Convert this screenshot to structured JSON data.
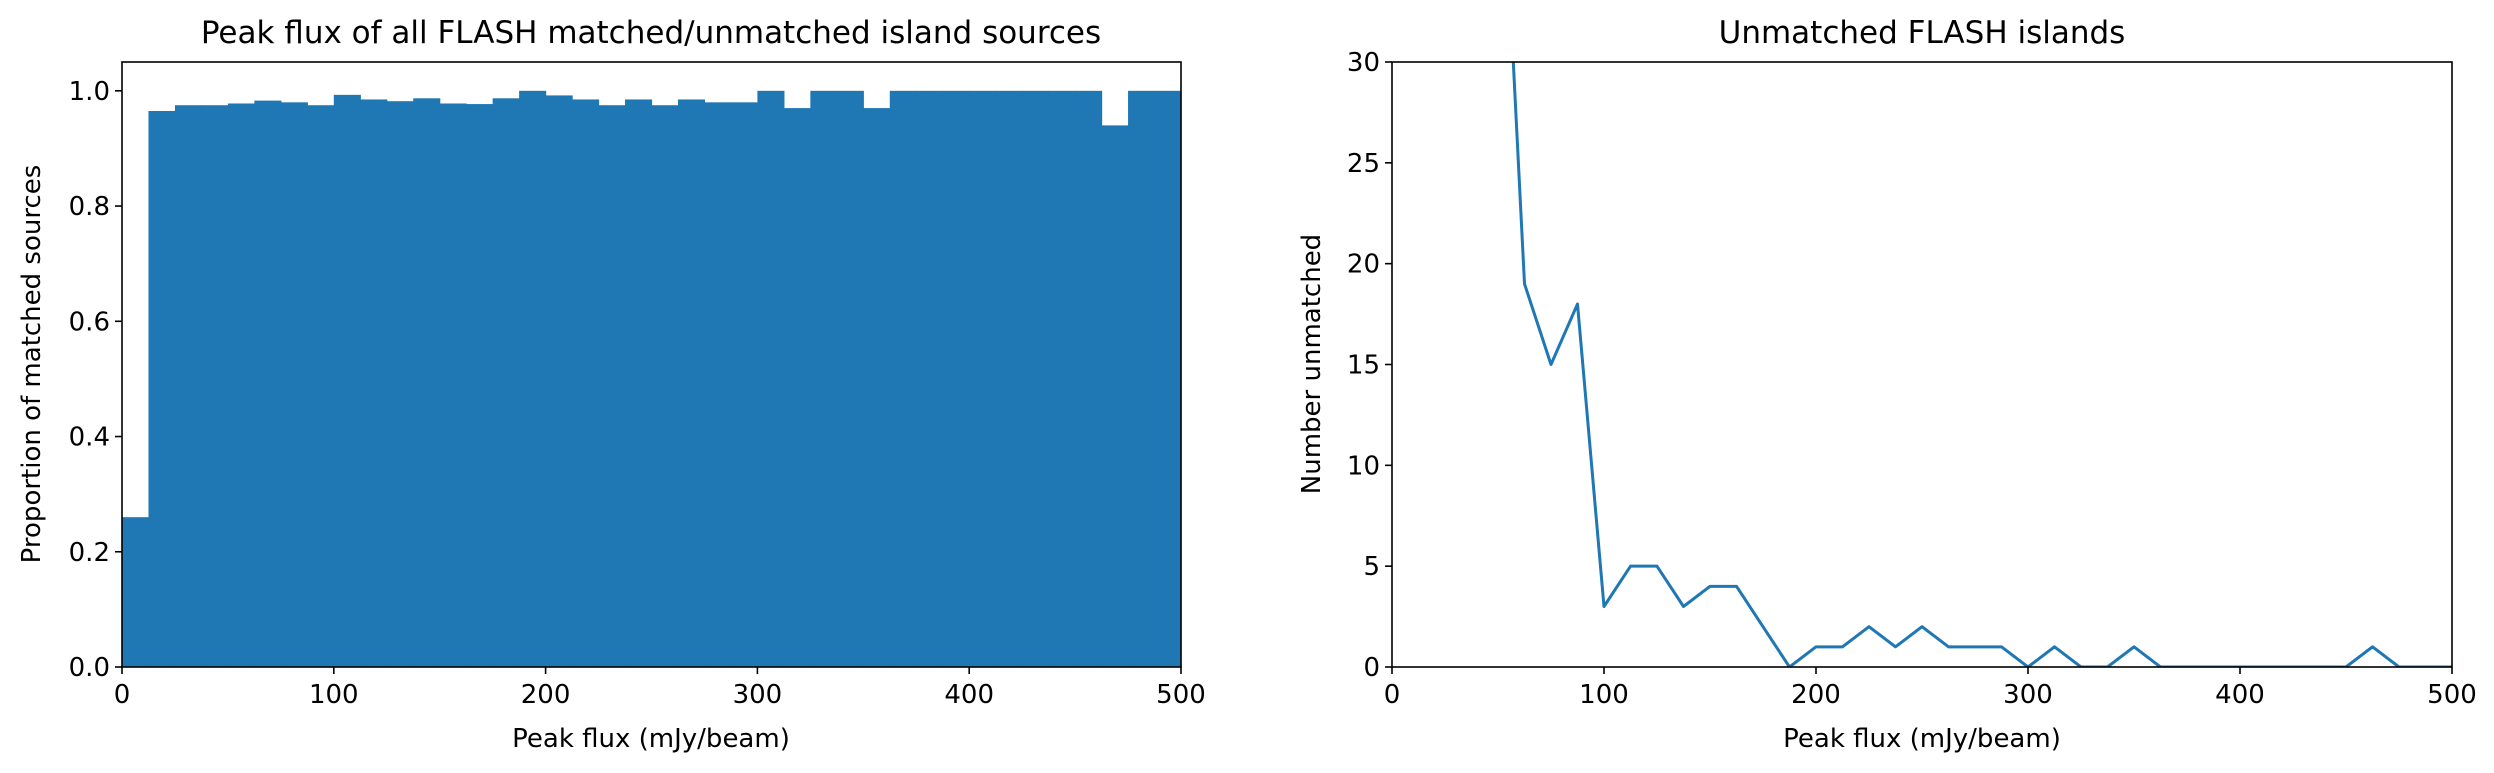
{
  "chart_data": [
    {
      "type": "bar",
      "title": "Peak flux of all FLASH matched/unmatched island sources",
      "xlabel": "Peak flux (mJy/beam)",
      "ylabel": "Proportion of matched sources",
      "xlim": [
        0,
        500
      ],
      "ylim": [
        0,
        1.05
      ],
      "xticks": [
        "0",
        "100",
        "200",
        "300",
        "400",
        "500"
      ],
      "yticks": [
        "0.0",
        "0.2",
        "0.4",
        "0.6",
        "0.8",
        "1.0"
      ],
      "grid": false,
      "color": "#1f77b4",
      "bin_width": 12.5,
      "bin_starts": [
        0,
        12.5,
        25,
        37.5,
        50,
        62.5,
        75,
        87.5,
        100,
        112.5,
        125,
        137.5,
        150,
        162.5,
        175,
        187.5,
        200,
        212.5,
        225,
        237.5,
        250,
        262.5,
        275,
        287.5,
        300,
        312.5,
        325,
        337.5,
        350,
        362.5,
        375,
        387.5,
        400,
        412.5,
        425,
        437.5,
        450,
        462.5,
        475,
        487.5
      ],
      "values": [
        0.26,
        0.965,
        0.975,
        0.975,
        0.978,
        0.983,
        0.98,
        0.975,
        0.993,
        0.985,
        0.982,
        0.987,
        0.978,
        0.977,
        0.987,
        1.0,
        0.992,
        0.985,
        0.975,
        0.985,
        0.975,
        0.985,
        0.98,
        0.98,
        1.0,
        0.97,
        1.0,
        1.0,
        0.97,
        1.0,
        1.0,
        1.0,
        1.0,
        1.0,
        1.0,
        1.0,
        1.0,
        0.94,
        1.0,
        1.0
      ]
    },
    {
      "type": "line",
      "title": "Unmatched FLASH islands",
      "xlabel": "Peak flux (mJy/beam)",
      "ylabel": "Number unmatched",
      "xlim": [
        0,
        500
      ],
      "ylim": [
        0,
        30
      ],
      "xticks": [
        "0",
        "100",
        "200",
        "300",
        "400",
        "500"
      ],
      "yticks": [
        "0",
        "5",
        "10",
        "15",
        "20",
        "25",
        "30"
      ],
      "grid": false,
      "color": "#1f77b4",
      "x": [
        50,
        62.5,
        75,
        87.5,
        100,
        112.5,
        125,
        137.5,
        150,
        162.5,
        175,
        187.5,
        200,
        212.5,
        225,
        237.5,
        250,
        262.5,
        275,
        287.5,
        300,
        312.5,
        325,
        337.5,
        350,
        362.5,
        375,
        387.5,
        400,
        412.5,
        425,
        437.5,
        450,
        462.5,
        475,
        487.5,
        500
      ],
      "y": [
        45,
        19,
        15,
        18,
        3,
        5,
        5,
        3,
        4,
        4,
        2,
        0,
        1,
        1,
        2,
        1,
        2,
        1,
        1,
        1,
        0,
        1,
        0,
        0,
        1,
        0,
        0,
        0,
        0,
        0,
        0,
        0,
        0,
        1,
        0,
        0,
        0
      ]
    }
  ]
}
